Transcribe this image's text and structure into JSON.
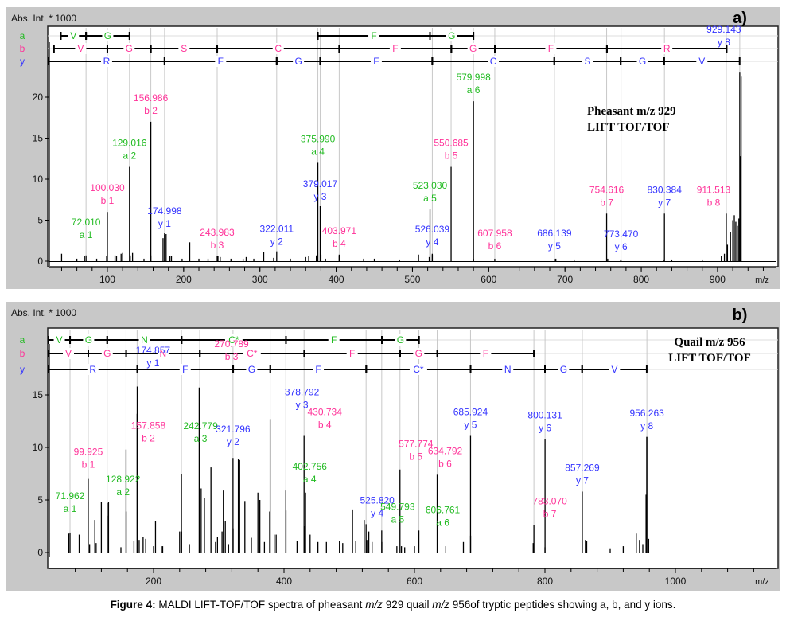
{
  "figure": {
    "caption_label": "Figure 4:",
    "caption_parts": [
      "MALDI LIFT-TOF/TOF spectra of pheasant ",
      "m/z",
      " 929 quail ",
      "m/z",
      " 956of tryptic peptides showing a, b, and y ions."
    ]
  },
  "colors": {
    "a_ion": "#22bb22",
    "b_ion": "#ff3399",
    "y_ion": "#3333ff",
    "frame_bg": "#c8c8c8",
    "spectrum": "#000000",
    "guide": "#c8c8c8"
  },
  "chart_data": [
    {
      "type": "spectrum",
      "panel_label": "a)",
      "ylabel": "Abs. Int. * 1000",
      "xlabel": "m/z",
      "title": "Pheasant m/z 929",
      "subtitle": "LIFT TOF/TOF",
      "xlim": [
        20,
        960
      ],
      "ylim": [
        -0.5,
        24
      ],
      "xticks": [
        100,
        200,
        300,
        400,
        500,
        600,
        700,
        800,
        900
      ],
      "yticks": [
        0,
        5,
        10,
        15,
        20
      ],
      "grid": false,
      "ladders": [
        {
          "series": "a",
          "residues": [
            {
              "label": "V",
              "from": 39,
              "to": 72
            },
            {
              "label": "G",
              "from": 72,
              "to": 129
            },
            {
              "label": "F",
              "from": 376,
              "to": 523
            },
            {
              "label": "G",
              "from": 523,
              "to": 580
            }
          ]
        },
        {
          "series": "b",
          "residues": [
            {
              "label": "V",
              "from": 30,
              "to": 100
            },
            {
              "label": "G",
              "from": 100,
              "to": 157
            },
            {
              "label": "S",
              "from": 157,
              "to": 244
            },
            {
              "label": "C",
              "from": 244,
              "to": 404
            },
            {
              "label": "F",
              "from": 404,
              "to": 551
            },
            {
              "label": "G",
              "from": 551,
              "to": 608
            },
            {
              "label": "F",
              "from": 608,
              "to": 755
            },
            {
              "label": "R",
              "from": 755,
              "to": 912
            }
          ]
        },
        {
          "series": "y",
          "residues": [
            {
              "label": "R",
              "from": 20,
              "to": 175
            },
            {
              "label": "F",
              "from": 175,
              "to": 322
            },
            {
              "label": "G",
              "from": 322,
              "to": 379
            },
            {
              "label": "F",
              "from": 379,
              "to": 526
            },
            {
              "label": "C",
              "from": 526,
              "to": 686
            },
            {
              "label": "S",
              "from": 686,
              "to": 773
            },
            {
              "label": "G",
              "from": 773,
              "to": 830
            },
            {
              "label": "V",
              "from": 830,
              "to": 929
            }
          ]
        }
      ],
      "peaks": [
        {
          "mz": 72.01,
          "ion": "a 1",
          "series": "a",
          "intensity": 0.7
        },
        {
          "mz": 100.03,
          "ion": "b 1",
          "series": "b",
          "intensity": 6.0
        },
        {
          "mz": 129.016,
          "ion": "a 2",
          "series": "a",
          "intensity": 11.5
        },
        {
          "mz": 156.986,
          "ion": "b 2",
          "series": "b",
          "intensity": 17.0
        },
        {
          "mz": 174.998,
          "ion": "y 1",
          "series": "y",
          "intensity": 3.4
        },
        {
          "mz": 243.983,
          "ion": "b 3",
          "series": "b",
          "intensity": 0.6
        },
        {
          "mz": 322.011,
          "ion": "y 2",
          "series": "y",
          "intensity": 1.2
        },
        {
          "mz": 375.99,
          "ion": "a 4",
          "series": "a",
          "intensity": 12.0
        },
        {
          "mz": 379.017,
          "ion": "y 3",
          "series": "y",
          "intensity": 6.7
        },
        {
          "mz": 403.971,
          "ion": "b 4",
          "series": "b",
          "intensity": 0.8
        },
        {
          "mz": 523.03,
          "ion": "a 5",
          "series": "a",
          "intensity": 6.3
        },
        {
          "mz": 526.039,
          "ion": "y 4",
          "series": "y",
          "intensity": 0.8
        },
        {
          "mz": 550.685,
          "ion": "b 5",
          "series": "b",
          "intensity": 11.5
        },
        {
          "mz": 579.998,
          "ion": "a 6",
          "series": "a",
          "intensity": 19.5
        },
        {
          "mz": 607.958,
          "ion": "b 6",
          "series": "b",
          "intensity": 0.3
        },
        {
          "mz": 686.139,
          "ion": "y 5",
          "series": "y",
          "intensity": 0.3
        },
        {
          "mz": 754.616,
          "ion": "b 7",
          "series": "b",
          "intensity": 5.8
        },
        {
          "mz": 773.47,
          "ion": "y 6",
          "series": "y",
          "intensity": 0.2
        },
        {
          "mz": 830.384,
          "ion": "y 7",
          "series": "y",
          "intensity": 5.8
        },
        {
          "mz": 911.513,
          "ion": "b 8",
          "series": "b",
          "intensity": 5.8
        },
        {
          "mz": 929.143,
          "ion": "y 8",
          "series": "y",
          "intensity": 23.0
        }
      ],
      "background_peaks": [
        [
          40,
          0.9
        ],
        [
          60,
          0.3
        ],
        [
          70,
          0.6
        ],
        [
          86,
          0.3
        ],
        [
          99,
          0.6
        ],
        [
          110,
          0.7
        ],
        [
          112,
          0.6
        ],
        [
          118,
          0.9
        ],
        [
          120,
          1.0
        ],
        [
          130,
          0.7
        ],
        [
          133,
          1.0
        ],
        [
          148,
          0.3
        ],
        [
          157,
          0.7
        ],
        [
          173,
          2.8
        ],
        [
          175,
          3.2
        ],
        [
          177,
          3.3
        ],
        [
          182,
          0.6
        ],
        [
          184,
          0.6
        ],
        [
          198,
          0.3
        ],
        [
          208,
          2.3
        ],
        [
          220,
          0.3
        ],
        [
          232,
          0.3
        ],
        [
          245,
          0.6
        ],
        [
          248,
          0.5
        ],
        [
          262,
          0.3
        ],
        [
          278,
          0.3
        ],
        [
          282,
          0.5
        ],
        [
          292,
          0.3
        ],
        [
          305,
          1.1
        ],
        [
          318,
          0.4
        ],
        [
          340,
          0.3
        ],
        [
          360,
          0.5
        ],
        [
          364,
          0.6
        ],
        [
          374,
          0.7
        ],
        [
          380,
          0.8
        ],
        [
          386,
          0.3
        ],
        [
          404,
          0.7
        ],
        [
          436,
          0.3
        ],
        [
          450,
          0.3
        ],
        [
          483,
          0.2
        ],
        [
          508,
          0.8
        ],
        [
          522,
          0.5
        ],
        [
          526,
          0.9
        ],
        [
          580,
          0.3
        ],
        [
          688,
          0.3
        ],
        [
          712,
          0.2
        ],
        [
          756,
          0.3
        ],
        [
          773,
          0.2
        ],
        [
          830,
          0.2
        ],
        [
          840,
          0.2
        ],
        [
          880,
          0.2
        ],
        [
          905,
          0.6
        ],
        [
          909,
          0.9
        ],
        [
          913,
          2.0
        ],
        [
          917,
          3.5
        ],
        [
          920,
          5.0
        ],
        [
          922,
          5.6
        ],
        [
          924,
          4.8
        ],
        [
          926,
          4.3
        ],
        [
          928,
          5.2
        ],
        [
          930,
          12.8
        ],
        [
          931,
          22.5
        ]
      ]
    },
    {
      "type": "spectrum",
      "panel_label": "b)",
      "ylabel": "Abs. Int. * 1000",
      "xlabel": "m/z",
      "title": "Quail m/z 956",
      "subtitle": "LIFT TOF/TOF",
      "xlim": [
        30,
        1130
      ],
      "ylim": [
        -0.8,
        18
      ],
      "xticks": [
        200,
        400,
        600,
        800,
        1000
      ],
      "yticks": [
        0,
        5,
        10,
        15
      ],
      "grid": false,
      "ladders": [
        {
          "series": "a",
          "residues": [
            {
              "label": "V",
              "from": 30,
              "to": 72
            },
            {
              "label": "G",
              "from": 72,
              "to": 129
            },
            {
              "label": "N",
              "from": 129,
              "to": 243
            },
            {
              "label": "C*",
              "from": 243,
              "to": 403
            },
            {
              "label": "F",
              "from": 403,
              "to": 550
            },
            {
              "label": "G",
              "from": 550,
              "to": 607
            }
          ]
        },
        {
          "series": "b",
          "residues": [
            {
              "label": "V",
              "from": 30,
              "to": 100
            },
            {
              "label": "G",
              "from": 100,
              "to": 158
            },
            {
              "label": "N",
              "from": 158,
              "to": 271
            },
            {
              "label": "C*",
              "from": 271,
              "to": 431
            },
            {
              "label": "F",
              "from": 431,
              "to": 578
            },
            {
              "label": "G",
              "from": 578,
              "to": 635
            },
            {
              "label": "F",
              "from": 635,
              "to": 783
            }
          ]
        },
        {
          "series": "y",
          "residues": [
            {
              "label": "R",
              "from": 30,
              "to": 175
            },
            {
              "label": "F",
              "from": 175,
              "to": 322
            },
            {
              "label": "G",
              "from": 322,
              "to": 379
            },
            {
              "label": "F",
              "from": 379,
              "to": 526
            },
            {
              "label": "C*",
              "from": 526,
              "to": 686
            },
            {
              "label": "N",
              "from": 686,
              "to": 800
            },
            {
              "label": "G",
              "from": 800,
              "to": 857
            },
            {
              "label": "V",
              "from": 857,
              "to": 956
            }
          ]
        }
      ],
      "peaks": [
        {
          "mz": 71.962,
          "ion": "a 1",
          "series": "a",
          "intensity": 1.9
        },
        {
          "mz": 99.925,
          "ion": "b 1",
          "series": "b",
          "intensity": 7.0
        },
        {
          "mz": 128.922,
          "ion": "a 2",
          "series": "a",
          "intensity": 4.7
        },
        {
          "mz": 157.858,
          "ion": "b 2",
          "series": "b",
          "intensity": 9.8
        },
        {
          "mz": 174.857,
          "ion": "y 1",
          "series": "y",
          "intensity": 13.2
        },
        {
          "mz": 242.779,
          "ion": "a 3",
          "series": "a",
          "intensity": 7.5
        },
        {
          "mz": 270.789,
          "ion": "b 3",
          "series": "b",
          "intensity": 15.3
        },
        {
          "mz": 321.796,
          "ion": "y 2",
          "series": "y",
          "intensity": 9.0
        },
        {
          "mz": 378.792,
          "ion": "y 3",
          "series": "y",
          "intensity": 12.7
        },
        {
          "mz": 402.756,
          "ion": "a 4",
          "series": "a",
          "intensity": 5.9
        },
        {
          "mz": 430.734,
          "ion": "b 4",
          "series": "b",
          "intensity": 11.1
        },
        {
          "mz": 525.82,
          "ion": "y 4",
          "series": "y",
          "intensity": 2.7
        },
        {
          "mz": 549.793,
          "ion": "a 5",
          "series": "a",
          "intensity": 2.1
        },
        {
          "mz": 577.774,
          "ion": "b 5",
          "series": "b",
          "intensity": 7.9
        },
        {
          "mz": 606.761,
          "ion": "a 6",
          "series": "a",
          "intensity": 2.1
        },
        {
          "mz": 634.792,
          "ion": "b 6",
          "series": "b",
          "intensity": 7.4
        },
        {
          "mz": 685.924,
          "ion": "y 5",
          "series": "y",
          "intensity": 11.1
        },
        {
          "mz": 783.07,
          "ion": "b 7",
          "series": "b",
          "intensity": 2.6
        },
        {
          "mz": 800.131,
          "ion": "y 6",
          "series": "y",
          "intensity": 10.8
        },
        {
          "mz": 857.269,
          "ion": "y 7",
          "series": "y",
          "intensity": 5.8
        },
        {
          "mz": 956.263,
          "ion": "y 8",
          "series": "y",
          "intensity": 11.0
        }
      ],
      "background_peaks": [
        [
          70,
          1.8
        ],
        [
          86,
          1.7
        ],
        [
          102,
          0.8
        ],
        [
          110,
          3.1
        ],
        [
          112,
          0.9
        ],
        [
          120,
          4.8
        ],
        [
          129,
          3.5
        ],
        [
          131,
          4.8
        ],
        [
          150,
          0.5
        ],
        [
          158,
          3.9
        ],
        [
          170,
          1.1
        ],
        [
          175,
          15.8
        ],
        [
          178,
          1.2
        ],
        [
          184,
          1.5
        ],
        [
          188,
          1.3
        ],
        [
          200,
          0.6
        ],
        [
          203,
          3.0
        ],
        [
          212,
          0.6
        ],
        [
          214,
          0.6
        ],
        [
          240,
          2.0
        ],
        [
          243,
          2.0
        ],
        [
          255,
          0.8
        ],
        [
          270,
          15.7
        ],
        [
          273,
          6.1
        ],
        [
          278,
          5.2
        ],
        [
          288,
          8.1
        ],
        [
          295,
          1.0
        ],
        [
          298,
          1.5
        ],
        [
          305,
          2.0
        ],
        [
          307,
          5.9
        ],
        [
          310,
          3.0
        ],
        [
          315,
          0.8
        ],
        [
          322,
          2.3
        ],
        [
          330,
          8.9
        ],
        [
          332,
          8.8
        ],
        [
          340,
          4.9
        ],
        [
          350,
          1.4
        ],
        [
          360,
          5.7
        ],
        [
          363,
          5.0
        ],
        [
          370,
          1.0
        ],
        [
          378,
          3.9
        ],
        [
          385,
          1.7
        ],
        [
          388,
          1.7
        ],
        [
          403,
          4.0
        ],
        [
          420,
          1.1
        ],
        [
          431,
          2.5
        ],
        [
          433,
          5.7
        ],
        [
          440,
          1.7
        ],
        [
          452,
          1.0
        ],
        [
          465,
          1.0
        ],
        [
          485,
          1.1
        ],
        [
          490,
          0.9
        ],
        [
          505,
          4.1
        ],
        [
          510,
          1.1
        ],
        [
          523,
          3.1
        ],
        [
          527,
          1.2
        ],
        [
          530,
          2.0
        ],
        [
          535,
          1.0
        ],
        [
          550,
          1.0
        ],
        [
          573,
          0.6
        ],
        [
          580,
          0.6
        ],
        [
          585,
          0.5
        ],
        [
          600,
          0.6
        ],
        [
          648,
          0.6
        ],
        [
          675,
          1.0
        ],
        [
          686,
          1.6
        ],
        [
          782,
          0.9
        ],
        [
          800,
          0.5
        ],
        [
          862,
          1.2
        ],
        [
          864,
          1.1
        ],
        [
          900,
          0.4
        ],
        [
          920,
          0.6
        ],
        [
          940,
          1.8
        ],
        [
          945,
          1.2
        ],
        [
          950,
          0.8
        ],
        [
          955,
          5.5
        ],
        [
          956,
          11.0
        ],
        [
          959,
          1.3
        ]
      ]
    }
  ]
}
